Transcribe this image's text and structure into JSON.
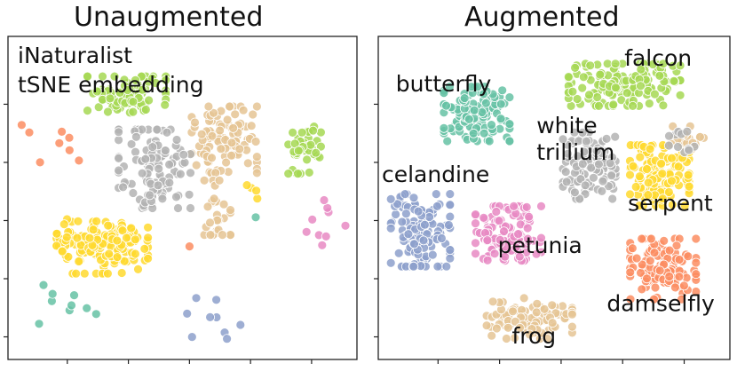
{
  "chart_data": [
    {
      "type": "scatter",
      "title": "Unaugmented",
      "annotation": [
        "iNaturalist",
        "tSNE embedding"
      ],
      "xlim": [
        0,
        100
      ],
      "ylim": [
        0,
        100
      ],
      "grid": false,
      "series": [
        {
          "color": "#a6d854",
          "n": 90,
          "cx": 34,
          "cy": 82,
          "rx": 12,
          "ry": 6
        },
        {
          "color": "#e5c494",
          "n": 110,
          "cx": 62,
          "cy": 68,
          "rx": 10,
          "ry": 11
        },
        {
          "color": "#e5c494",
          "n": 28,
          "cx": 60,
          "cy": 47,
          "rx": 4,
          "ry": 9
        },
        {
          "color": "#a6d854",
          "n": 40,
          "cx": 85,
          "cy": 65,
          "rx": 5,
          "ry": 8
        },
        {
          "color": "#b3b3b3",
          "n": 120,
          "cx": 42,
          "cy": 59,
          "rx": 11,
          "ry": 13
        },
        {
          "color": "#ffd92f",
          "n": 150,
          "cx": 27,
          "cy": 35,
          "rx": 14,
          "ry": 9
        },
        {
          "color": "#fc8d62",
          "n": 8,
          "cx": 13,
          "cy": 68,
          "rx": 10,
          "ry": 9
        },
        {
          "color": "#66c2a5",
          "n": 9,
          "cx": 17,
          "cy": 18,
          "rx": 10,
          "ry": 7
        },
        {
          "color": "#8da0cb",
          "n": 9,
          "cx": 59,
          "cy": 13,
          "rx": 8,
          "ry": 10
        },
        {
          "color": "#e78ac3",
          "n": 9,
          "cx": 91,
          "cy": 42,
          "rx": 6,
          "ry": 8
        },
        {
          "color": "#ffd92f",
          "n": 4,
          "cx": 71,
          "cy": 51,
          "rx": 3,
          "ry": 3
        },
        {
          "color": "#66c2a5",
          "n": 1,
          "cx": 71,
          "cy": 44,
          "rx": 0,
          "ry": 0
        },
        {
          "color": "#fc8d62",
          "n": 1,
          "cx": 52,
          "cy": 35,
          "rx": 0,
          "ry": 0
        }
      ]
    },
    {
      "type": "scatter",
      "title": "Augmented",
      "xlim": [
        0,
        100
      ],
      "ylim": [
        0,
        100
      ],
      "grid": false,
      "series": [
        {
          "name": "butterfly",
          "color": "#66c2a5",
          "n": 120,
          "cx": 28,
          "cy": 76,
          "rx": 10,
          "ry": 9
        },
        {
          "name": "falcon",
          "color": "#a6d854",
          "n": 140,
          "cx": 70,
          "cy": 85,
          "rx": 17,
          "ry": 7
        },
        {
          "name": "white trillium",
          "color": "#b3b3b3",
          "n": 110,
          "cx": 60,
          "cy": 60,
          "rx": 8,
          "ry": 11
        },
        {
          "name": "serpent",
          "color": "#ffd92f",
          "n": 130,
          "cx": 80,
          "cy": 57,
          "rx": 9,
          "ry": 10
        },
        {
          "name": "celandine",
          "color": "#8da0cb",
          "n": 120,
          "cx": 12,
          "cy": 40,
          "rx": 9,
          "ry": 12
        },
        {
          "name": "petunia",
          "color": "#e78ac3",
          "n": 110,
          "cx": 37,
          "cy": 39,
          "rx": 10,
          "ry": 9
        },
        {
          "name": "damselfly",
          "color": "#fc8d62",
          "n": 120,
          "cx": 81,
          "cy": 28,
          "rx": 10,
          "ry": 10
        },
        {
          "name": "frog",
          "color": "#e5c494",
          "n": 90,
          "cx": 43,
          "cy": 13,
          "rx": 13,
          "ry": 7
        },
        {
          "color": "#e5c494",
          "n": 20,
          "cx": 88,
          "cy": 69,
          "rx": 5,
          "ry": 4
        },
        {
          "color": "#b3b3b3",
          "n": 12,
          "cx": 86,
          "cy": 68,
          "rx": 4,
          "ry": 4
        }
      ],
      "labels": [
        {
          "lines": [
            "butterfly"
          ],
          "x": 5,
          "y": 83
        },
        {
          "lines": [
            "falcon"
          ],
          "x": 70,
          "y": 91
        },
        {
          "lines": [
            "white",
            "trillium"
          ],
          "x": 45,
          "y": 70
        },
        {
          "lines": [
            "celandine"
          ],
          "x": 1,
          "y": 55
        },
        {
          "lines": [
            "serpent"
          ],
          "x": 71,
          "y": 46
        },
        {
          "lines": [
            "petunia"
          ],
          "x": 34,
          "y": 33
        },
        {
          "lines": [
            "damselfly"
          ],
          "x": 65,
          "y": 15
        },
        {
          "lines": [
            "frog"
          ],
          "x": 38,
          "y": 5
        }
      ]
    }
  ]
}
